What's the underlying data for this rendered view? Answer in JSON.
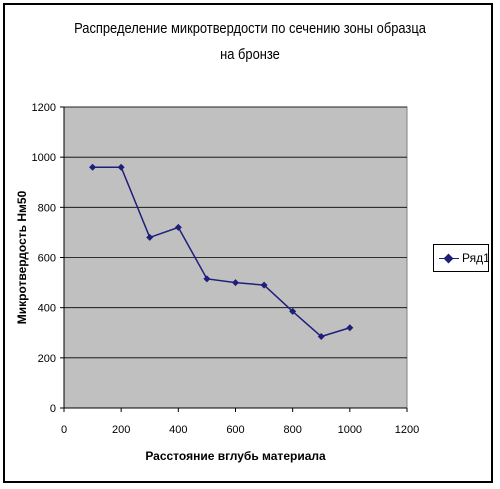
{
  "chart_data": {
    "type": "line",
    "title_line1": "Распределение микротвердости по сечению зоны образца",
    "title_line2": "на бронзе",
    "xlabel": "Расстояние вглубь материала",
    "ylabel": "Микротвердость Нм50",
    "xlim": [
      0,
      1200
    ],
    "ylim": [
      0,
      1200
    ],
    "x_ticks": [
      0,
      200,
      400,
      600,
      800,
      1000,
      1200
    ],
    "y_ticks": [
      0,
      200,
      400,
      600,
      800,
      1000,
      1200
    ],
    "grid": "horizontal",
    "legend": "right",
    "series": [
      {
        "name": "Ряд1",
        "color": "#1f1f7a",
        "x": [
          100,
          200,
          300,
          400,
          500,
          600,
          700,
          800,
          900,
          1000
        ],
        "y": [
          960,
          960,
          680,
          720,
          515,
          500,
          490,
          385,
          285,
          320
        ]
      }
    ],
    "plot_background": "#c0c0c0"
  }
}
